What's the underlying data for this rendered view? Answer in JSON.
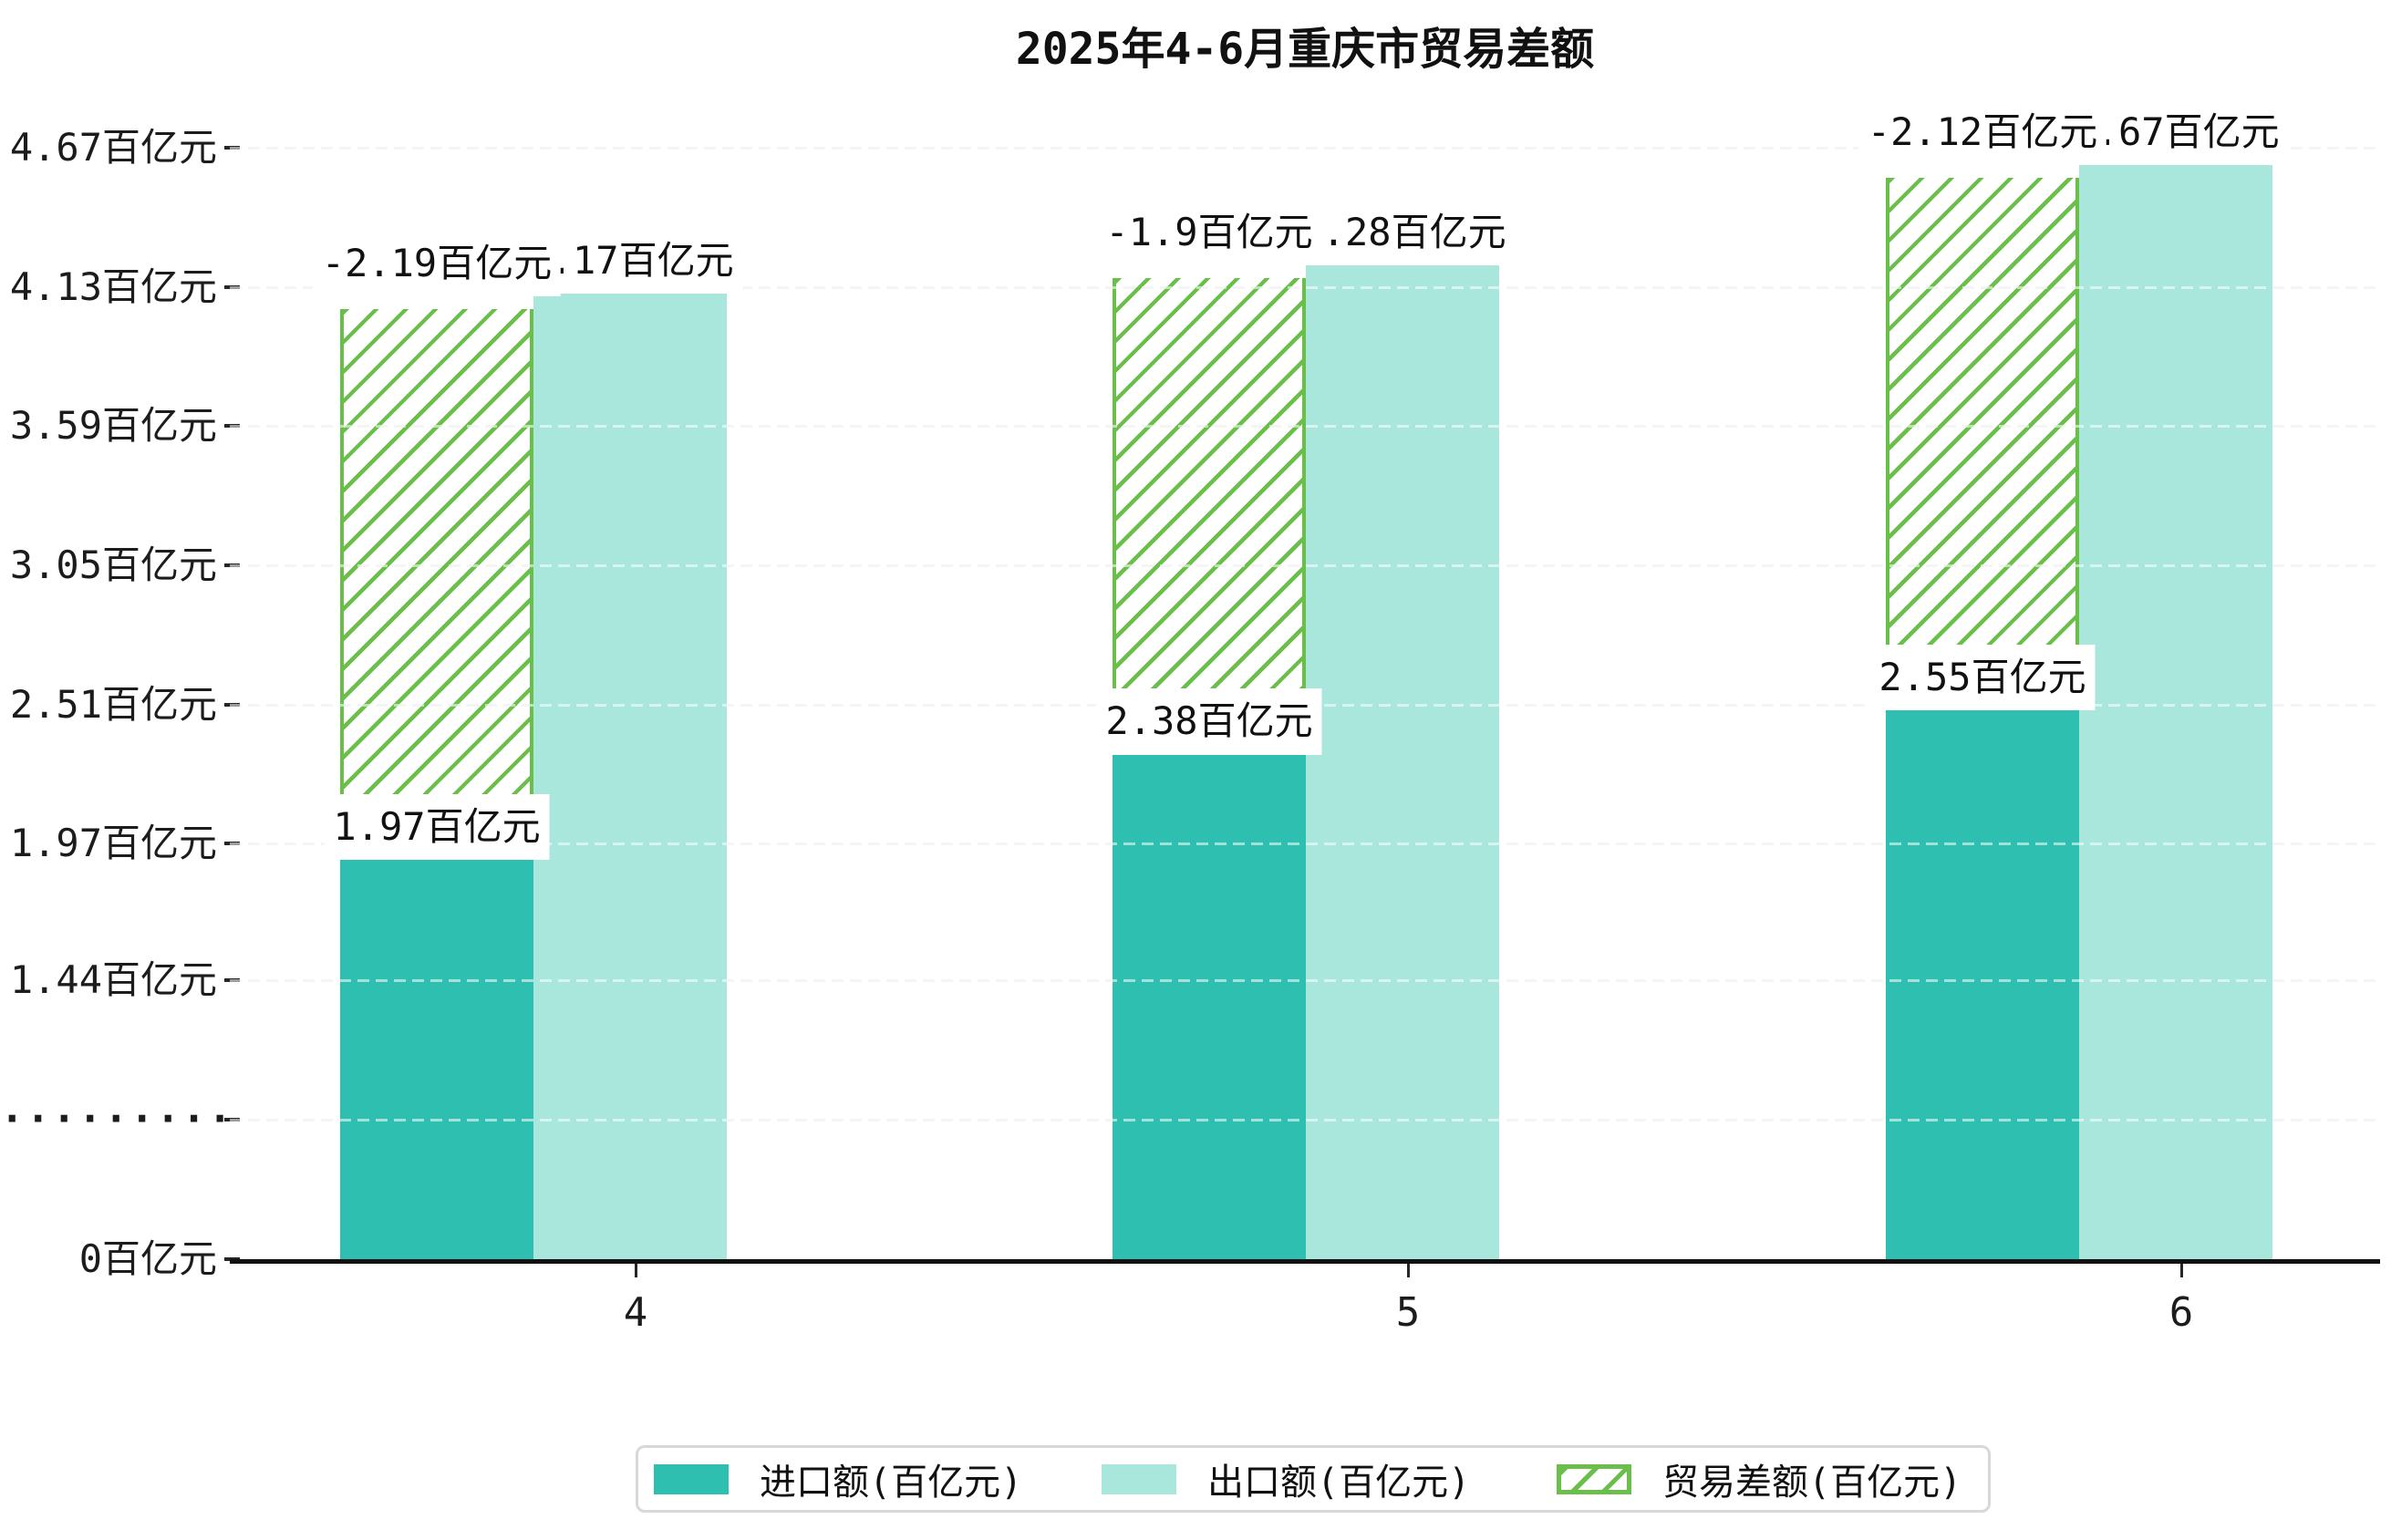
{
  "title": "2025年4-6月重庆市贸易差额",
  "chart_data": {
    "type": "bar",
    "title": "2025年4-6月重庆市贸易差额",
    "categories": [
      "4",
      "5",
      "6"
    ],
    "series": [
      {
        "key": "import",
        "name": "进口额(百亿元)",
        "style": "solid",
        "color": "#2fbfb0",
        "values": [
          1.97,
          2.38,
          2.55
        ],
        "data_labels": [
          "1.97百亿元",
          "2.38百亿元",
          "2.55百亿元"
        ]
      },
      {
        "key": "export",
        "name": "出口额(百亿元)",
        "style": "solid",
        "color": "#a9e7dd",
        "values": [
          4.17,
          4.28,
          4.67
        ],
        "data_labels": [
          "4.17百亿元",
          "4.28百亿元",
          "4.67百亿元"
        ]
      },
      {
        "key": "trade-balance",
        "name": "贸易差额(百亿元)",
        "style": "hatched",
        "color": "#6abf4a",
        "values": [
          -2.19,
          -1.9,
          -2.12
        ],
        "data_labels": [
          "-2.19百亿元",
          "-1.9百亿元",
          "-2.12百亿元"
        ]
      }
    ],
    "y_ticks": [
      {
        "label": "4.67百亿元",
        "value": 4.67
      },
      {
        "label": "4.13百亿元",
        "value": 4.13
      },
      {
        "label": "3.59百亿元",
        "value": 3.59
      },
      {
        "label": "3.05百亿元",
        "value": 3.05
      },
      {
        "label": "2.51百亿元",
        "value": 2.51
      },
      {
        "label": "1.97百亿元",
        "value": 1.97
      },
      {
        "label": "1.44百亿元",
        "value": 1.44
      },
      {
        "label": "·········",
        "value": 0.9,
        "axis_break": true
      },
      {
        "label": "0百亿元",
        "value": 0
      }
    ],
    "ylim": [
      0,
      4.67
    ],
    "y_axis_break": true,
    "grid": "horizontal-dashed",
    "legend_position": "bottom"
  },
  "colors": {
    "import_bar": "#2fbfb0",
    "export_bar": "#a9e7dd",
    "balance_hatch": "#6abf4a",
    "gridline": "#e8e8e8",
    "axis": "#111111",
    "text": "#1a1a1a",
    "legend_border": "#d8d8d8"
  }
}
